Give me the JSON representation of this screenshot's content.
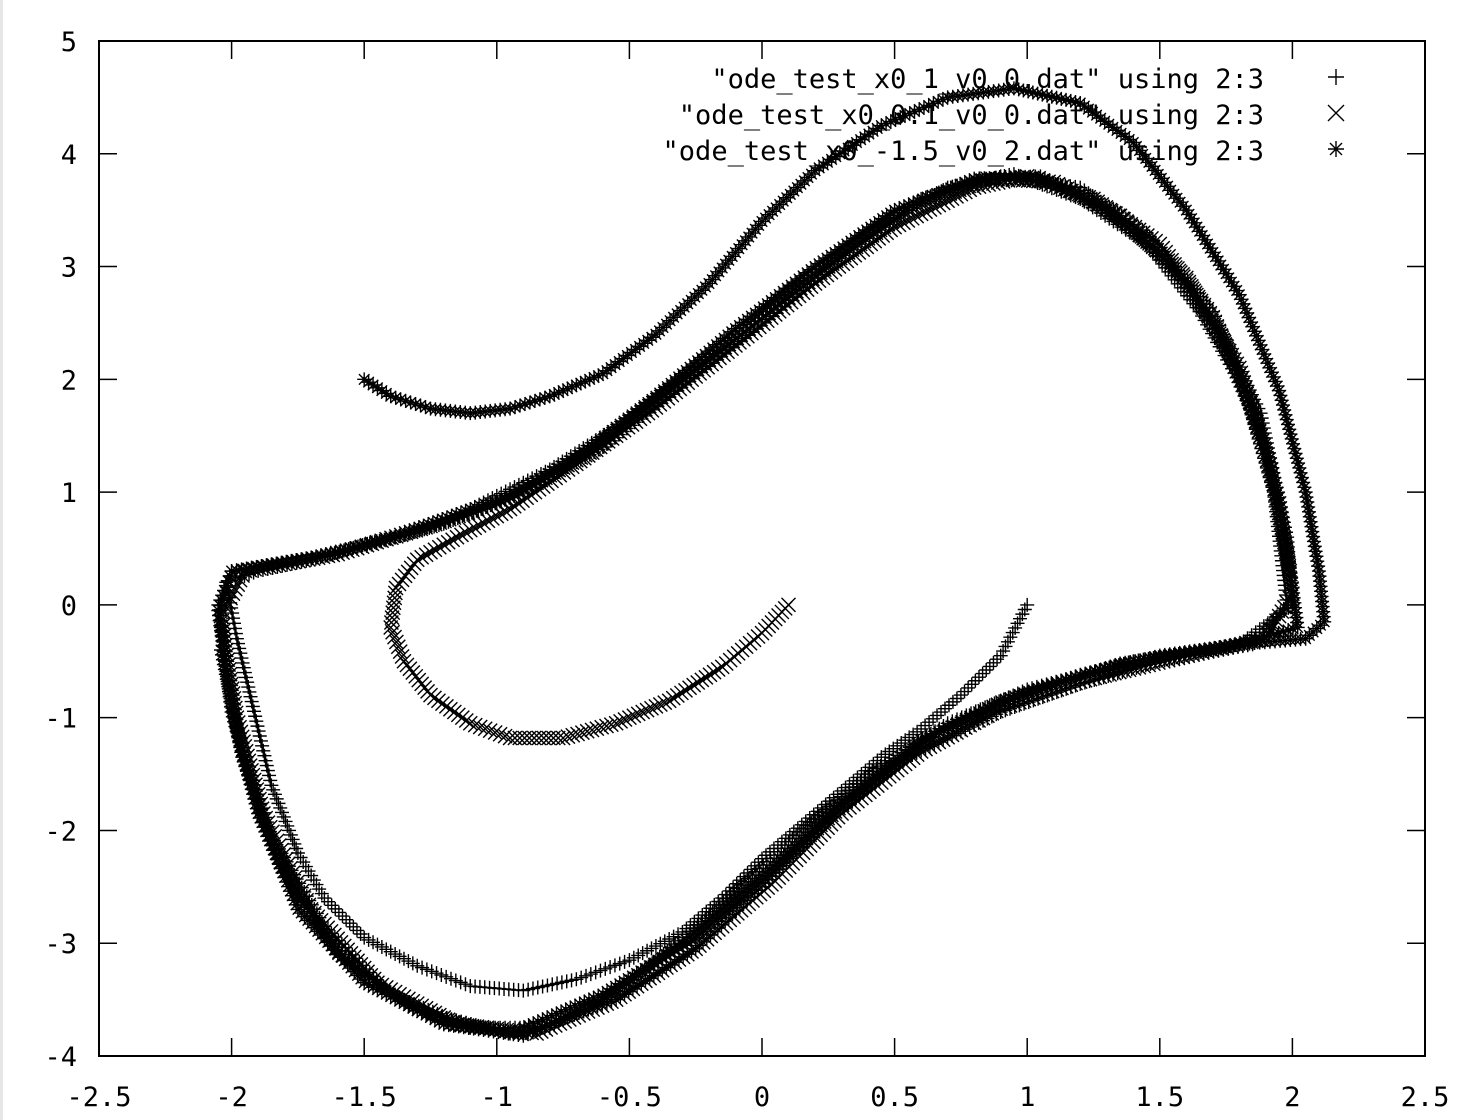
{
  "chart_data": {
    "type": "scatter",
    "xlim": [
      -2.5,
      2.5
    ],
    "ylim": [
      -4,
      5
    ],
    "xticks": [
      -2.5,
      -2,
      -1.5,
      -1,
      -0.5,
      0,
      0.5,
      1,
      1.5,
      2,
      2.5
    ],
    "xtick_labels": [
      "-2.5",
      "-2",
      "-1.5",
      "-1",
      "-0.5",
      "0",
      "0.5",
      "1",
      "1.5",
      "2",
      "2.5"
    ],
    "yticks": [
      -4,
      -3,
      -2,
      -1,
      0,
      1,
      2,
      3,
      4,
      5
    ],
    "ytick_labels": [
      "-4",
      "-3",
      "-2",
      "-1",
      "0",
      "1",
      "2",
      "3",
      "4",
      "5"
    ],
    "grid": false,
    "legend_position": "top-right",
    "series": [
      {
        "name": "\"ode_test_x0_1_v0_0.dat\" using 2:3",
        "marker": "plus",
        "points": [
          [
            1.0,
            0.0
          ],
          [
            0.9,
            -0.45
          ],
          [
            0.75,
            -0.8
          ],
          [
            0.6,
            -1.1
          ],
          [
            0.45,
            -1.35
          ],
          [
            0.3,
            -1.65
          ],
          [
            0.15,
            -1.95
          ],
          [
            0.0,
            -2.25
          ],
          [
            -0.15,
            -2.6
          ],
          [
            -0.3,
            -2.9
          ],
          [
            -0.5,
            -3.15
          ],
          [
            -0.7,
            -3.32
          ],
          [
            -0.9,
            -3.42
          ],
          [
            -1.1,
            -3.38
          ],
          [
            -1.3,
            -3.2
          ],
          [
            -1.5,
            -2.95
          ],
          [
            -1.65,
            -2.6
          ],
          [
            -1.75,
            -2.2
          ],
          [
            -1.85,
            -1.6
          ],
          [
            -1.92,
            -0.9
          ],
          [
            -1.98,
            -0.3
          ],
          [
            -2.02,
            0.2
          ],
          [
            -1.9,
            0.3
          ],
          [
            -1.7,
            0.4
          ],
          [
            -1.4,
            0.6
          ],
          [
            -1.1,
            0.85
          ],
          [
            -0.8,
            1.2
          ],
          [
            -0.5,
            1.65
          ],
          [
            -0.2,
            2.2
          ],
          [
            0.1,
            2.8
          ],
          [
            0.4,
            3.3
          ],
          [
            0.7,
            3.7
          ],
          [
            0.95,
            3.82
          ],
          [
            1.2,
            3.6
          ],
          [
            1.45,
            3.2
          ],
          [
            1.65,
            2.6
          ],
          [
            1.82,
            1.9
          ],
          [
            1.93,
            1.0
          ],
          [
            1.98,
            0.0
          ],
          [
            1.85,
            -0.35
          ],
          [
            1.5,
            -0.5
          ],
          [
            1.2,
            -0.7
          ],
          [
            0.9,
            -0.95
          ],
          [
            0.55,
            -1.35
          ],
          [
            0.25,
            -1.9
          ],
          [
            0.0,
            -2.5
          ],
          [
            -0.25,
            -3.05
          ],
          [
            -0.55,
            -3.5
          ],
          [
            -0.9,
            -3.8
          ],
          [
            -1.2,
            -3.7
          ],
          [
            -1.5,
            -3.3
          ],
          [
            -1.75,
            -2.6
          ],
          [
            -1.9,
            -1.8
          ],
          [
            -2.0,
            -0.9
          ],
          [
            -2.05,
            0.0
          ],
          [
            -2.0,
            0.3
          ],
          [
            -1.6,
            0.45
          ],
          [
            -1.2,
            0.72
          ],
          [
            -0.9,
            1.0
          ],
          [
            -0.6,
            1.4
          ],
          [
            -0.3,
            1.95
          ],
          [
            0.0,
            2.5
          ],
          [
            0.3,
            3.1
          ],
          [
            0.6,
            3.6
          ],
          [
            0.9,
            3.8
          ],
          [
            1.2,
            3.7
          ],
          [
            1.45,
            3.3
          ],
          [
            1.7,
            2.6
          ],
          [
            1.88,
            1.7
          ],
          [
            1.98,
            0.6
          ],
          [
            2.0,
            0.0
          ],
          [
            1.8,
            -0.35
          ],
          [
            1.4,
            -0.5
          ],
          [
            1.0,
            -0.75
          ],
          [
            0.7,
            -1.05
          ],
          [
            0.4,
            -1.5
          ],
          [
            0.1,
            -2.1
          ],
          [
            -0.2,
            -2.75
          ],
          [
            -0.5,
            -3.35
          ],
          [
            -0.8,
            -3.75
          ],
          [
            -1.1,
            -3.75
          ],
          [
            -1.4,
            -3.45
          ],
          [
            -1.65,
            -2.85
          ],
          [
            -1.85,
            -2.05
          ],
          [
            -1.98,
            -1.1
          ],
          [
            -2.04,
            -0.2
          ]
        ]
      },
      {
        "name": "\"ode_test_x0_0.1_v0_0.dat\" using 2:3",
        "marker": "cross",
        "points": [
          [
            0.1,
            0.0
          ],
          [
            0.0,
            -0.25
          ],
          [
            -0.15,
            -0.55
          ],
          [
            -0.35,
            -0.85
          ],
          [
            -0.55,
            -1.05
          ],
          [
            -0.75,
            -1.18
          ],
          [
            -0.95,
            -1.18
          ],
          [
            -1.1,
            -1.05
          ],
          [
            -1.25,
            -0.8
          ],
          [
            -1.35,
            -0.5
          ],
          [
            -1.4,
            -0.2
          ],
          [
            -1.38,
            0.15
          ],
          [
            -1.3,
            0.4
          ],
          [
            -1.15,
            0.6
          ],
          [
            -0.95,
            0.85
          ],
          [
            -0.7,
            1.25
          ],
          [
            -0.4,
            1.75
          ],
          [
            -0.1,
            2.3
          ],
          [
            0.2,
            2.85
          ],
          [
            0.5,
            3.35
          ],
          [
            0.8,
            3.7
          ],
          [
            1.0,
            3.8
          ],
          [
            1.25,
            3.6
          ],
          [
            1.5,
            3.2
          ],
          [
            1.7,
            2.55
          ],
          [
            1.85,
            1.75
          ],
          [
            1.95,
            0.9
          ],
          [
            2.0,
            0.1
          ],
          [
            1.9,
            -0.3
          ],
          [
            1.55,
            -0.48
          ],
          [
            1.2,
            -0.68
          ],
          [
            0.9,
            -0.92
          ],
          [
            0.6,
            -1.3
          ],
          [
            0.3,
            -1.85
          ],
          [
            0.05,
            -2.45
          ],
          [
            -0.25,
            -3.05
          ],
          [
            -0.55,
            -3.5
          ],
          [
            -0.85,
            -3.8
          ],
          [
            -1.15,
            -3.72
          ],
          [
            -1.45,
            -3.35
          ],
          [
            -1.7,
            -2.7
          ],
          [
            -1.88,
            -1.85
          ],
          [
            -1.98,
            -1.0
          ],
          [
            -2.04,
            -0.1
          ],
          [
            -1.95,
            0.3
          ],
          [
            -1.6,
            0.45
          ],
          [
            -1.25,
            0.7
          ],
          [
            -0.95,
            0.95
          ],
          [
            -0.65,
            1.35
          ],
          [
            -0.35,
            1.9
          ],
          [
            -0.05,
            2.45
          ],
          [
            0.25,
            3.0
          ],
          [
            0.55,
            3.5
          ],
          [
            0.85,
            3.78
          ],
          [
            1.1,
            3.75
          ],
          [
            1.35,
            3.45
          ],
          [
            1.6,
            2.9
          ],
          [
            1.8,
            2.1
          ],
          [
            1.92,
            1.2
          ],
          [
            1.99,
            0.3
          ]
        ]
      },
      {
        "name": "\"ode_test_x0_-1.5_v0_2.dat\" using 2:3",
        "marker": "star",
        "points": [
          [
            -1.5,
            2.0
          ],
          [
            -1.4,
            1.85
          ],
          [
            -1.25,
            1.74
          ],
          [
            -1.1,
            1.7
          ],
          [
            -0.95,
            1.74
          ],
          [
            -0.8,
            1.85
          ],
          [
            -0.6,
            2.05
          ],
          [
            -0.4,
            2.4
          ],
          [
            -0.2,
            2.85
          ],
          [
            0.0,
            3.4
          ],
          [
            0.2,
            3.85
          ],
          [
            0.45,
            4.25
          ],
          [
            0.7,
            4.5
          ],
          [
            0.95,
            4.58
          ],
          [
            1.2,
            4.45
          ],
          [
            1.4,
            4.1
          ],
          [
            1.6,
            3.5
          ],
          [
            1.8,
            2.75
          ],
          [
            1.95,
            1.9
          ],
          [
            2.05,
            1.0
          ],
          [
            2.1,
            0.3
          ],
          [
            2.12,
            -0.15
          ],
          [
            2.05,
            -0.3
          ],
          [
            1.8,
            -0.35
          ],
          [
            1.5,
            -0.45
          ],
          [
            1.2,
            -0.62
          ],
          [
            0.9,
            -0.85
          ],
          [
            0.6,
            -1.2
          ],
          [
            0.3,
            -1.75
          ],
          [
            0.0,
            -2.4
          ],
          [
            -0.3,
            -3.0
          ],
          [
            -0.6,
            -3.5
          ],
          [
            -0.9,
            -3.82
          ],
          [
            -1.2,
            -3.72
          ],
          [
            -1.5,
            -3.35
          ],
          [
            -1.75,
            -2.7
          ],
          [
            -1.9,
            -1.85
          ],
          [
            -2.0,
            -0.95
          ],
          [
            -2.05,
            -0.05
          ],
          [
            -2.0,
            0.3
          ],
          [
            -1.7,
            0.42
          ],
          [
            -1.35,
            0.62
          ],
          [
            -1.0,
            0.9
          ],
          [
            -0.7,
            1.3
          ],
          [
            -0.4,
            1.85
          ],
          [
            -0.1,
            2.45
          ],
          [
            0.2,
            3.0
          ],
          [
            0.5,
            3.5
          ],
          [
            0.8,
            3.78
          ],
          [
            1.05,
            3.8
          ],
          [
            1.3,
            3.5
          ],
          [
            1.55,
            3.0
          ],
          [
            1.75,
            2.3
          ],
          [
            1.9,
            1.4
          ],
          [
            1.98,
            0.5
          ],
          [
            2.02,
            -0.2
          ],
          [
            1.75,
            -0.38
          ],
          [
            1.35,
            -0.52
          ],
          [
            1.0,
            -0.78
          ],
          [
            0.65,
            -1.15
          ],
          [
            0.35,
            -1.7
          ],
          [
            0.05,
            -2.35
          ],
          [
            -0.25,
            -2.95
          ],
          [
            -0.6,
            -3.45
          ],
          [
            -0.95,
            -3.8
          ],
          [
            -1.3,
            -3.6
          ],
          [
            -1.6,
            -3.1
          ],
          [
            -1.82,
            -2.3
          ],
          [
            -1.96,
            -1.35
          ],
          [
            -2.04,
            -0.4
          ]
        ]
      }
    ]
  }
}
